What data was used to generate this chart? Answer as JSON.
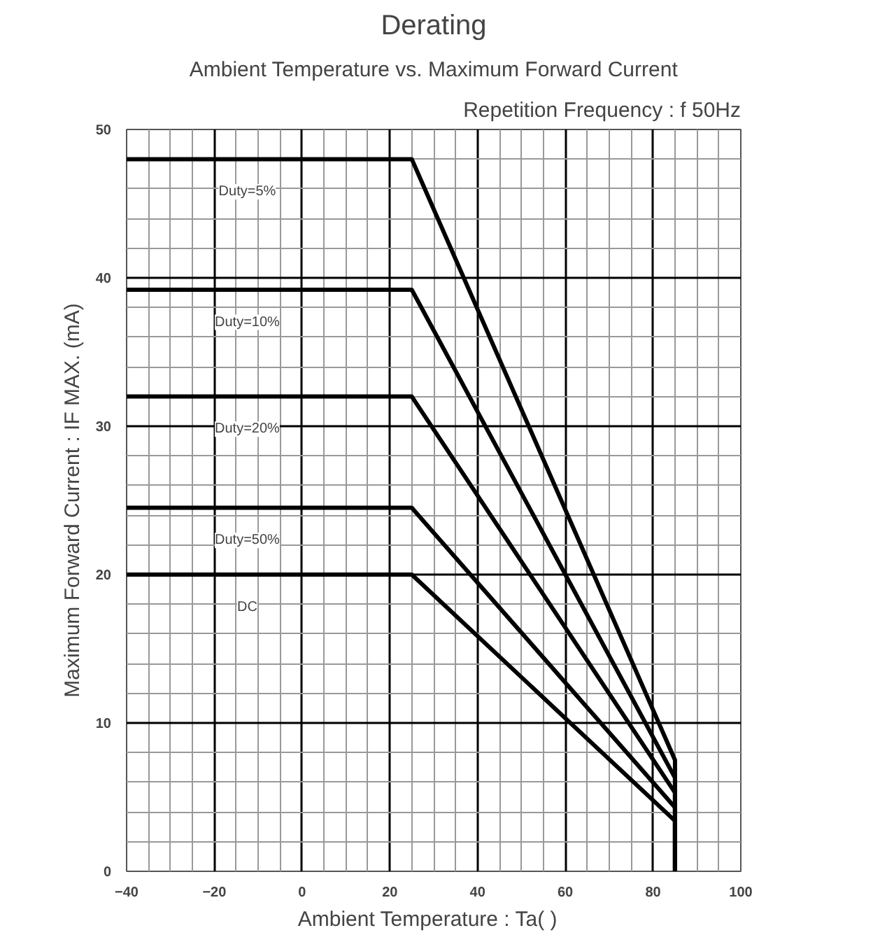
{
  "chart_data": {
    "type": "line",
    "title": "Derating",
    "subtitle": "Ambient Temperature vs. Maximum Forward Current",
    "annotations": [
      "Repetition Frequency : f 50Hz"
    ],
    "xlabel": "Ambient Temperature : Ta(   )",
    "ylabel": "Maximum Forward Current : IF MAX. (mA)",
    "x": [
      -40,
      25,
      85,
      85
    ],
    "series": [
      {
        "name": "Duty=5%",
        "color": "#000000",
        "values": [
          48,
          48,
          7.5,
          0
        ]
      },
      {
        "name": "Duty=10%",
        "color": "#000000",
        "values": [
          39.2,
          39.2,
          6.3,
          0
        ]
      },
      {
        "name": "Duty=20%",
        "color": "#000000",
        "values": [
          32,
          32,
          5.3,
          0
        ]
      },
      {
        "name": "Duty=50%",
        "color": "#000000",
        "values": [
          24.5,
          24.5,
          4.3,
          0
        ]
      },
      {
        "name": "DC",
        "color": "#000000",
        "values": [
          20,
          20,
          3.4,
          0
        ]
      }
    ],
    "xlim": [
      -40,
      100
    ],
    "xticks": [
      -40,
      -20,
      0,
      20,
      40,
      60,
      80,
      100
    ],
    "ylim": [
      0,
      50
    ],
    "yticks": [
      0,
      10,
      20,
      30,
      40,
      50
    ],
    "grid": true,
    "marker": "none",
    "line_style": "solid"
  }
}
